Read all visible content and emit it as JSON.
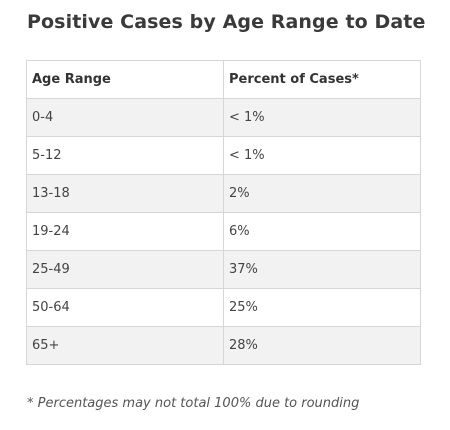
{
  "chart_data": {
    "type": "table",
    "title": "Positive Cases by Age Range to Date",
    "columns": [
      "Age Range",
      "Percent of Cases*"
    ],
    "rows": [
      [
        "0-4",
        "< 1%"
      ],
      [
        "5-12",
        "< 1%"
      ],
      [
        "13-18",
        "2%"
      ],
      [
        "19-24",
        "6%"
      ],
      [
        "25-49",
        "37%"
      ],
      [
        "50-64",
        "25%"
      ],
      [
        "65+",
        "28%"
      ]
    ],
    "footnote": "* Percentages may not total 100% due to rounding"
  }
}
